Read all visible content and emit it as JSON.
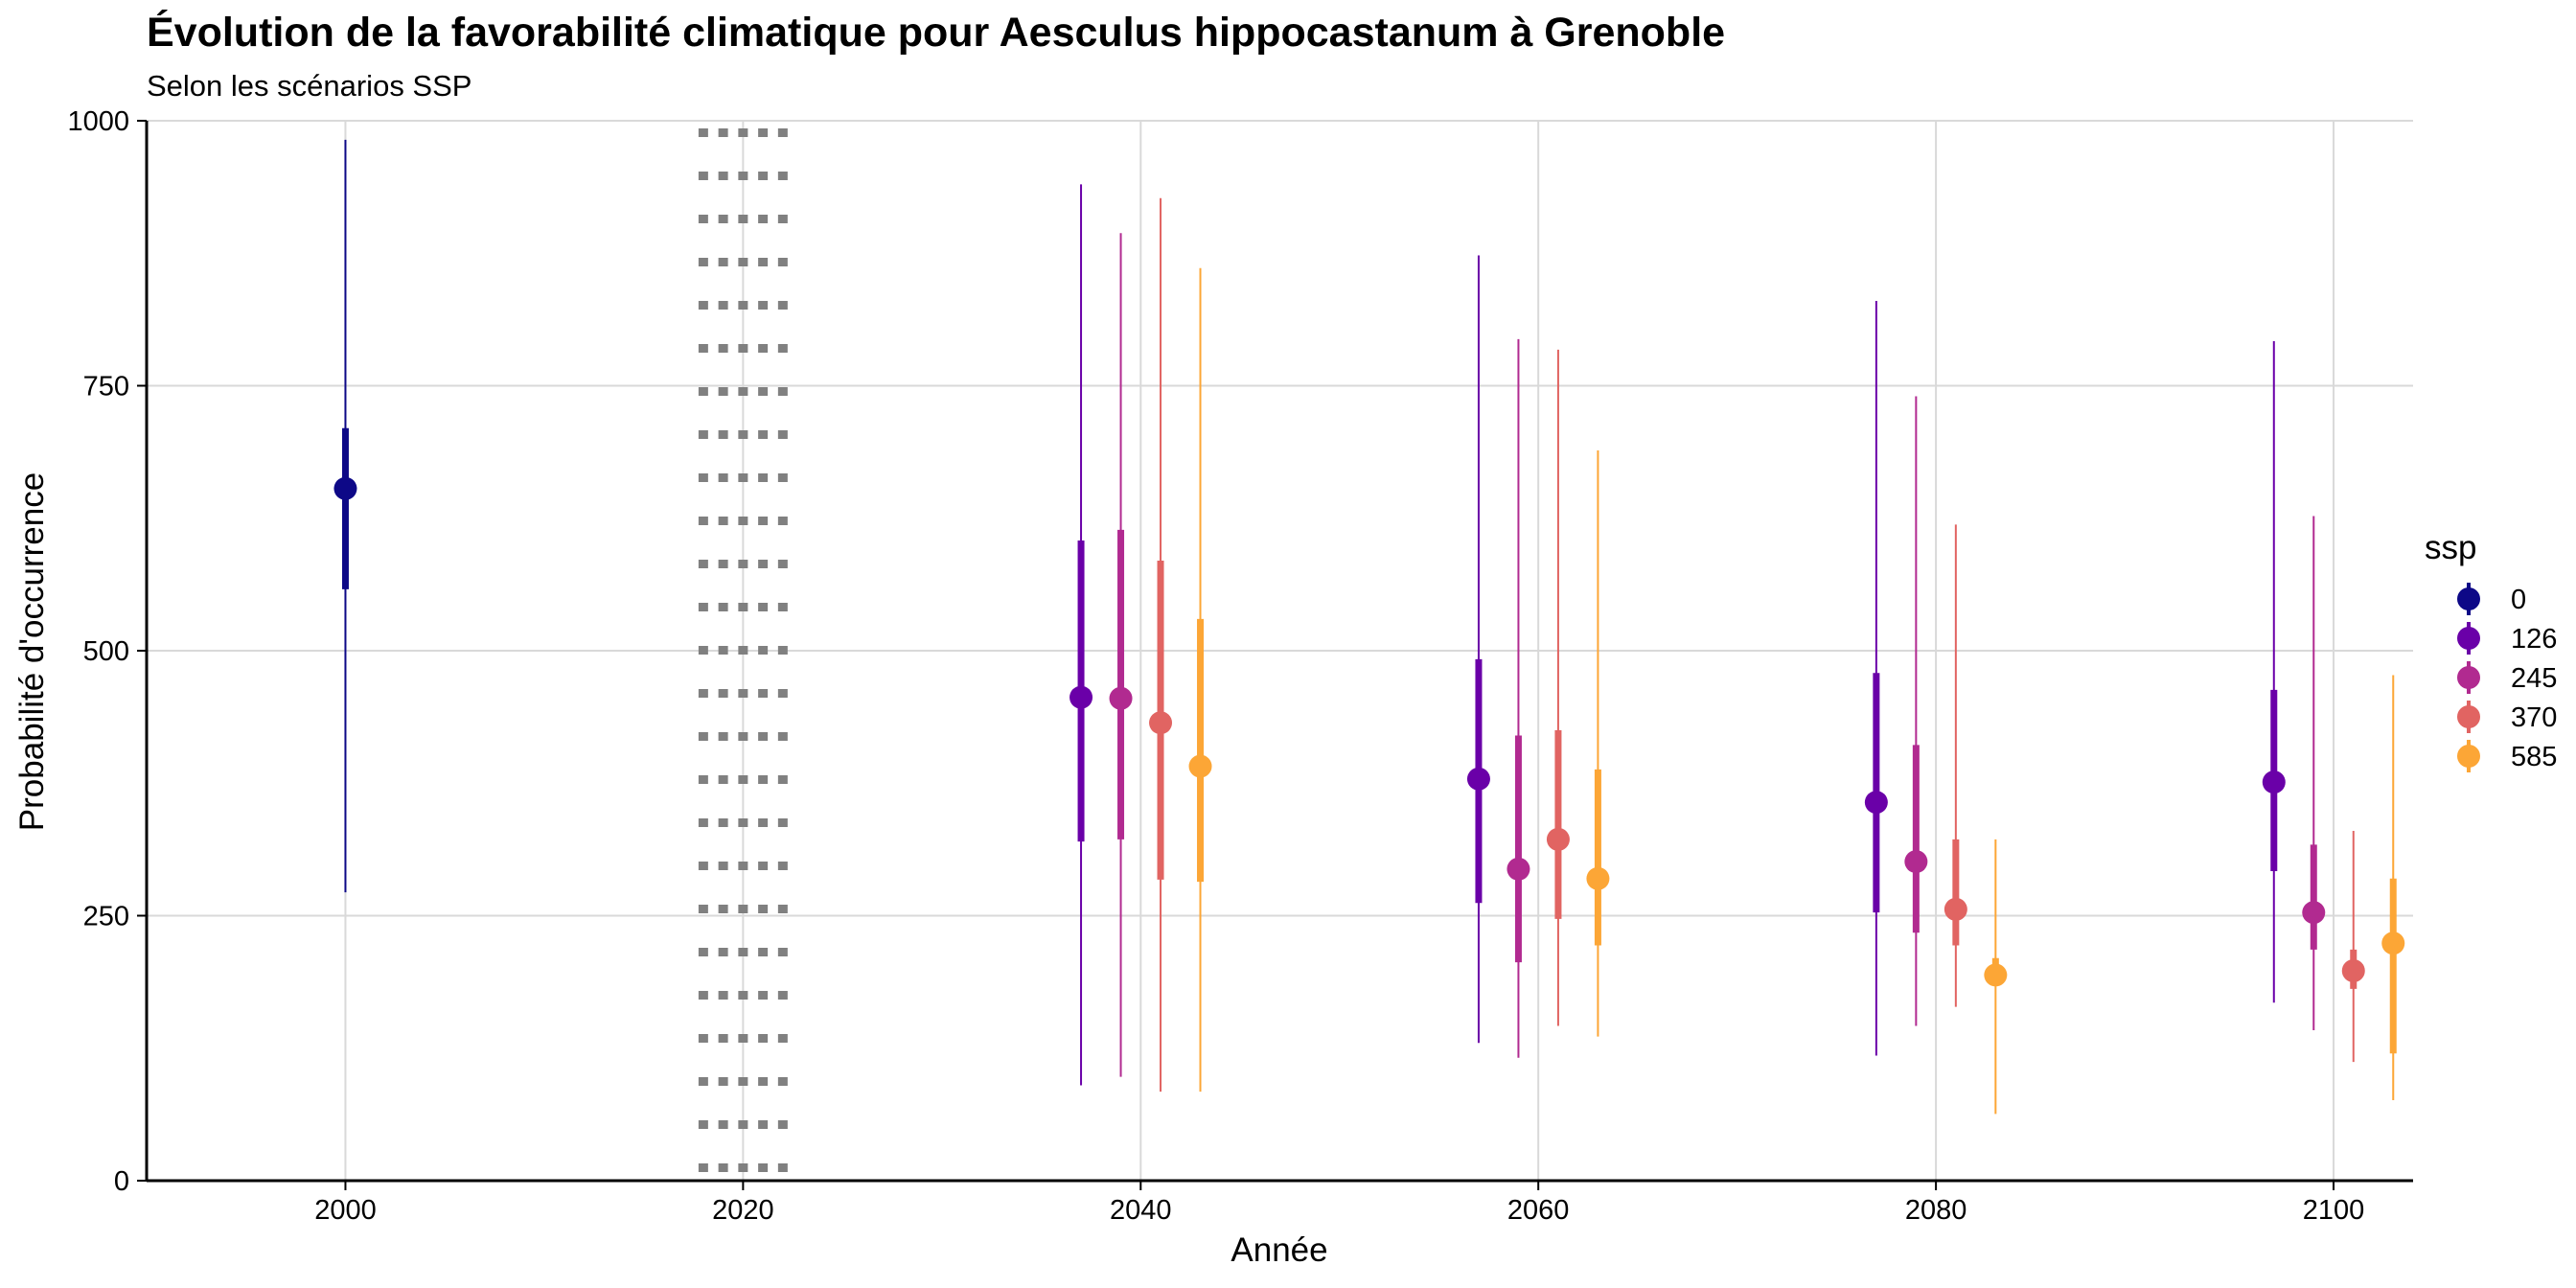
{
  "chart_data": {
    "type": "pointrange",
    "title": "Évolution de la favorabilité climatique pour Aesculus hippocastanum à Grenoble",
    "subtitle": "Selon les scénarios SSP",
    "xlabel": "Année",
    "ylabel": "Probabilité d'occurrence",
    "xlim": [
      1990,
      2104
    ],
    "ylim": [
      0,
      1000
    ],
    "x_ticks": [
      2000,
      2020,
      2040,
      2060,
      2080,
      2100
    ],
    "y_ticks": [
      0,
      250,
      500,
      750,
      1000
    ],
    "grid": true,
    "reference_band": {
      "x_start": 2018,
      "x_end": 2022,
      "style": "dotted",
      "color": "#808080"
    },
    "legend": {
      "title": "ssp",
      "position": "right"
    },
    "series": [
      {
        "name": "0",
        "color": "#0D0887",
        "points": [
          {
            "x": 2000,
            "y": 653,
            "inner": [
              558,
              710
            ],
            "outer": [
              272,
              982
            ]
          }
        ]
      },
      {
        "name": "126",
        "color": "#6A00A8",
        "points": [
          {
            "x": 2037,
            "y": 456,
            "inner": [
              320,
              604
            ],
            "outer": [
              90,
              940
            ]
          },
          {
            "x": 2057,
            "y": 379,
            "inner": [
              262,
              492
            ],
            "outer": [
              130,
              873
            ]
          },
          {
            "x": 2077,
            "y": 357,
            "inner": [
              253,
              479
            ],
            "outer": [
              118,
              830
            ]
          },
          {
            "x": 2097,
            "y": 376,
            "inner": [
              292,
              463
            ],
            "outer": [
              168,
              792
            ]
          }
        ]
      },
      {
        "name": "245",
        "color": "#B12A90",
        "points": [
          {
            "x": 2039,
            "y": 455,
            "inner": [
              322,
              614
            ],
            "outer": [
              98,
              894
            ]
          },
          {
            "x": 2059,
            "y": 294,
            "inner": [
              206,
              420
            ],
            "outer": [
              116,
              794
            ]
          },
          {
            "x": 2079,
            "y": 301,
            "inner": [
              234,
              411
            ],
            "outer": [
              146,
              740
            ]
          },
          {
            "x": 2099,
            "y": 253,
            "inner": [
              218,
              317
            ],
            "outer": [
              142,
              627
            ]
          }
        ]
      },
      {
        "name": "370",
        "color": "#E16462",
        "points": [
          {
            "x": 2041,
            "y": 432,
            "inner": [
              284,
              585
            ],
            "outer": [
              84,
              927
            ]
          },
          {
            "x": 2061,
            "y": 322,
            "inner": [
              247,
              425
            ],
            "outer": [
              146,
              784
            ]
          },
          {
            "x": 2081,
            "y": 256,
            "inner": [
              222,
              322
            ],
            "outer": [
              164,
              619
            ]
          },
          {
            "x": 2101,
            "y": 198,
            "inner": [
              181,
              218
            ],
            "outer": [
              112,
              330
            ]
          }
        ]
      },
      {
        "name": "585",
        "color": "#FCA636",
        "points": [
          {
            "x": 2043,
            "y": 391,
            "inner": [
              282,
              530
            ],
            "outer": [
              84,
              861
            ]
          },
          {
            "x": 2063,
            "y": 285,
            "inner": [
              222,
              388
            ],
            "outer": [
              136,
              689
            ]
          },
          {
            "x": 2083,
            "y": 194,
            "inner": [
              184,
              210
            ],
            "outer": [
              63,
              322
            ]
          },
          {
            "x": 2103,
            "y": 224,
            "inner": [
              120,
              285
            ],
            "outer": [
              76,
              477
            ]
          }
        ]
      }
    ]
  }
}
